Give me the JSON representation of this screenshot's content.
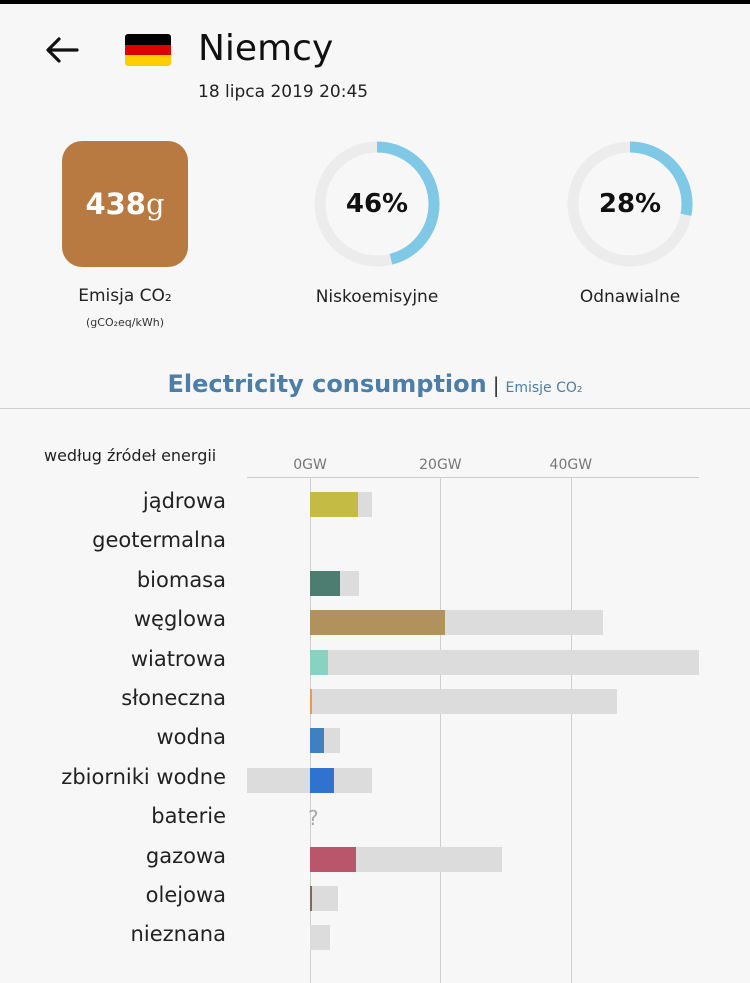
{
  "header": {
    "country": "Niemcy",
    "datetime": "18 lipca 2019 20:45",
    "flag_colors": [
      "#000000",
      "#dd0000",
      "#ffce00"
    ]
  },
  "metrics": {
    "co2": {
      "value": "438",
      "unit": "g",
      "label": "Emisja CO₂",
      "sublabel": "(gCO₂eq/kWh)",
      "color": "#b87a40"
    },
    "low_carbon": {
      "percent": 46,
      "text": "46%",
      "label": "Niskoemisyjne"
    },
    "renewable": {
      "percent": 28,
      "text": "28%",
      "label": "Odnawialne"
    },
    "ring_color": "#7fc8e6",
    "ring_track": "#ececec"
  },
  "tabs": {
    "active": "Electricity consumption",
    "separator": "|",
    "other": "Emisje CO₂"
  },
  "chart_data": {
    "type": "bar",
    "title": "według źródeł energii",
    "x_unit": "GW",
    "ticks": [
      "0GW",
      "20GW",
      "40GW"
    ],
    "tick_values": [
      0,
      20,
      40
    ],
    "xlim": [
      -9.6,
      59.6
    ],
    "categories": [
      "jądrowa",
      "geotermalna",
      "biomasa",
      "węglowa",
      "wiatrowa",
      "słoneczna",
      "wodna",
      "zbiorniki wodne",
      "baterie",
      "gazowa",
      "olejowa",
      "nieznana"
    ],
    "series": [
      {
        "name": "capacity",
        "values": [
          9.5,
          0,
          7.5,
          44.9,
          59.6,
          47.1,
          4.6,
          9.5,
          null,
          29.4,
          4.3,
          3.1
        ],
        "negative_values": [
          0,
          0,
          0,
          0,
          0,
          0,
          0,
          -9.6,
          null,
          0,
          0,
          0
        ],
        "color": "#dcdcdc"
      },
      {
        "name": "production",
        "values": [
          7.3,
          0,
          4.6,
          20.7,
          2.8,
          0.3,
          2.2,
          3.7,
          null,
          7.0,
          0.2,
          0
        ],
        "colors": [
          "#c3bb44",
          "#ff3333",
          "#4d7d70",
          "#b2925c",
          "#87d2c1",
          "#e39a5a",
          "#3e80c0",
          "#2f72cf",
          "#888888",
          "#b9566c",
          "#866563",
          "#aaaaaa"
        ]
      }
    ],
    "unknown_marker": "?"
  }
}
